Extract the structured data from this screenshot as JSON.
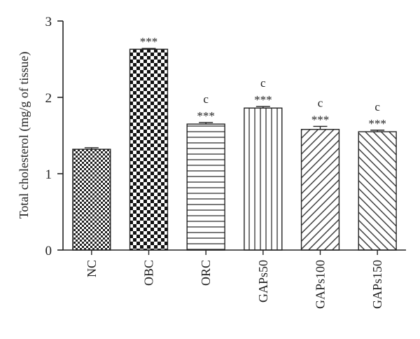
{
  "chart_data": {
    "type": "bar",
    "title": "",
    "xlabel": "",
    "ylabel": "Total cholesterol (mg/g of tissue)",
    "ylim": [
      0,
      3
    ],
    "yticks": [
      "0",
      "1",
      "2",
      "3"
    ],
    "categories": [
      "NC",
      "OBC",
      "ORC",
      "GAPs50",
      "GAPs100",
      "GAPs150"
    ],
    "values": [
      1.32,
      2.63,
      1.65,
      1.86,
      1.58,
      1.55
    ],
    "errors": [
      0.02,
      0.01,
      0.02,
      0.02,
      0.04,
      0.02
    ],
    "patterns": [
      "small-checker",
      "large-checker",
      "horizontal-lines",
      "vertical-lines",
      "diagonal-hatch-up",
      "diagonal-hatch-down"
    ],
    "significance": [
      "",
      "***",
      "***",
      "***",
      "***",
      "***"
    ],
    "letters": [
      "",
      "",
      "c",
      "c",
      "c",
      "c"
    ],
    "grid": false,
    "legend": "none",
    "colors": {
      "ink": "#222222",
      "background": "#ffffff"
    }
  }
}
